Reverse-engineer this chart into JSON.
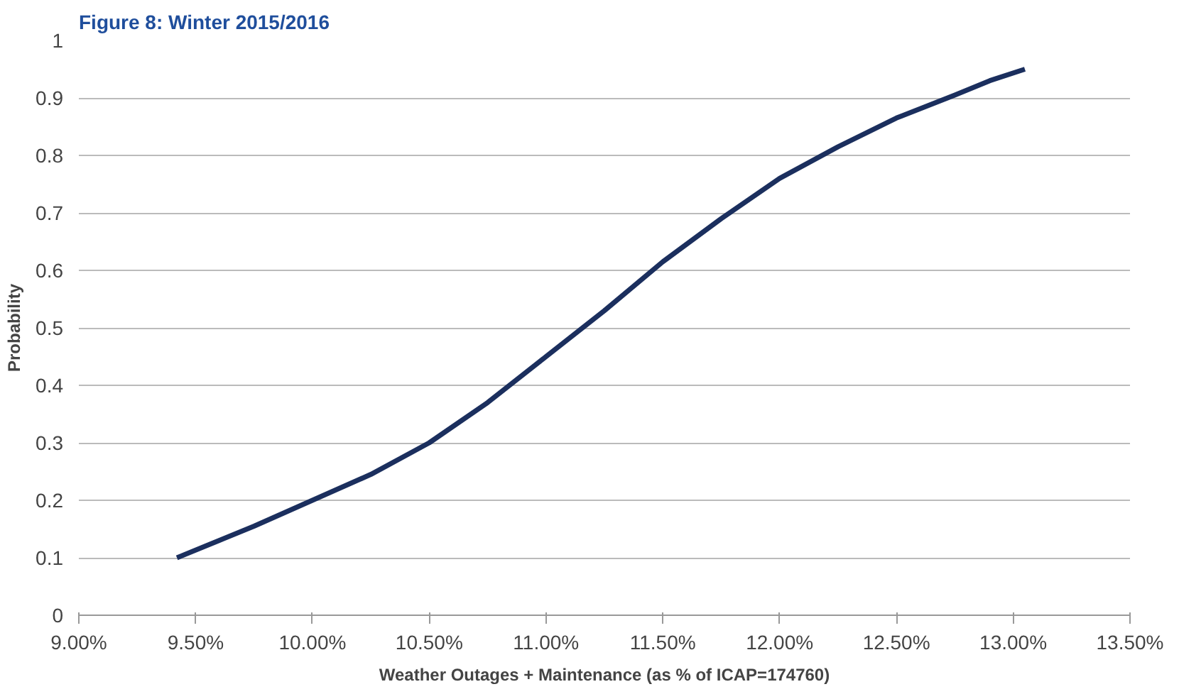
{
  "chart_data": {
    "type": "line",
    "title": "Figure 8:     Winter 2015/2016",
    "xlabel": "Weather Outages + Maintenance (as % of ICAP=174760)",
    "ylabel": "Probability",
    "x": [
      9.42,
      9.6,
      9.75,
      10.0,
      10.25,
      10.5,
      10.75,
      11.0,
      11.25,
      11.5,
      11.75,
      12.0,
      12.25,
      12.5,
      12.75,
      12.9,
      13.05
    ],
    "series": [
      {
        "color": "#1b2f5e",
        "values": [
          0.1,
          0.13,
          0.155,
          0.2,
          0.245,
          0.3,
          0.37,
          0.45,
          0.53,
          0.615,
          0.69,
          0.76,
          0.815,
          0.865,
          0.905,
          0.93,
          0.95
        ]
      }
    ],
    "xlim": [
      9.0,
      13.5
    ],
    "ylim": [
      0,
      1
    ],
    "xticks": [
      {
        "value": 9.0,
        "label": "9.00%"
      },
      {
        "value": 9.5,
        "label": "9.50%"
      },
      {
        "value": 10.0,
        "label": "10.00%"
      },
      {
        "value": 10.5,
        "label": "10.50%"
      },
      {
        "value": 11.0,
        "label": "11.00%"
      },
      {
        "value": 11.5,
        "label": "11.50%"
      },
      {
        "value": 12.0,
        "label": "12.00%"
      },
      {
        "value": 12.5,
        "label": "12.50%"
      },
      {
        "value": 13.0,
        "label": "13.00%"
      },
      {
        "value": 13.5,
        "label": "13.50%"
      }
    ],
    "yticks": [
      0,
      0.1,
      0.2,
      0.3,
      0.4,
      0.5,
      0.6,
      0.7,
      0.8,
      0.9,
      1
    ],
    "grid": "y",
    "marker": "none",
    "line_style": "solid"
  }
}
